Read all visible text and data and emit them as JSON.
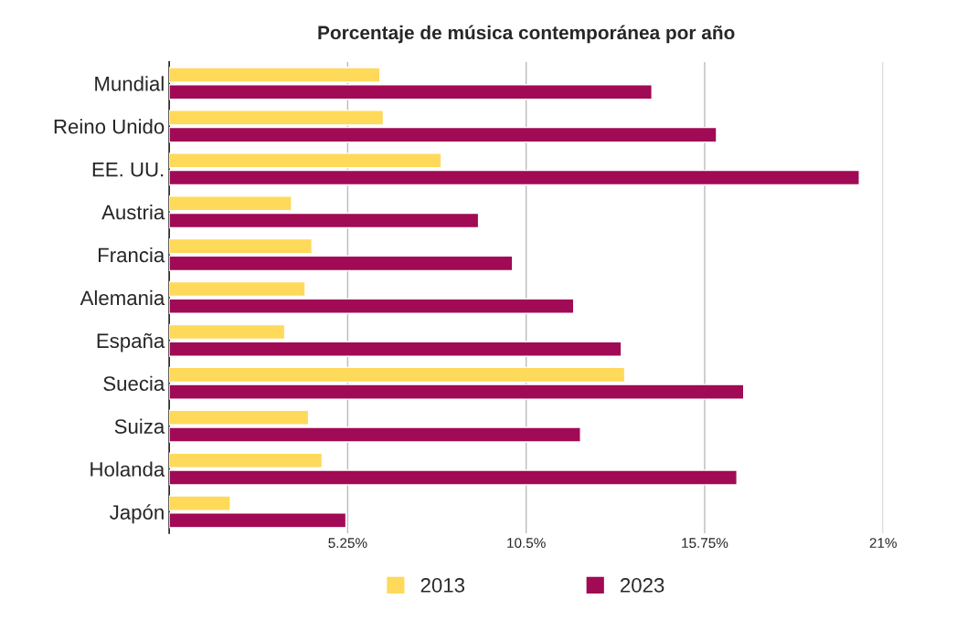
{
  "chart_data": {
    "type": "bar",
    "orientation": "horizontal",
    "title": "Porcentaje de música contemporánea por año",
    "categories": [
      "Mundial",
      "Reino Unido",
      "EE. UU.",
      "Austria",
      "Francia",
      "Alemania",
      "España",
      "Suecia",
      "Suiza",
      "Holanda",
      "Japón"
    ],
    "series": [
      {
        "name": "2013",
        "color": "#ffd95a",
        "values": [
          6.2,
          6.3,
          8.0,
          3.6,
          4.2,
          4.0,
          3.4,
          13.4,
          4.1,
          4.5,
          1.8
        ]
      },
      {
        "name": "2023",
        "color": "#a10a55",
        "values": [
          14.2,
          16.1,
          20.3,
          9.1,
          10.1,
          11.9,
          13.3,
          16.9,
          12.1,
          16.7,
          5.2
        ]
      }
    ],
    "xlim": [
      0,
      21
    ],
    "xticks": [
      {
        "value": 0,
        "label": null
      },
      {
        "value": 5.25,
        "label": "5.25%"
      },
      {
        "value": 10.5,
        "label": "10.5%"
      },
      {
        "value": 15.75,
        "label": "15.75%"
      },
      {
        "value": 21,
        "label": "21%"
      }
    ],
    "grid": "x",
    "legend": "bottom"
  }
}
